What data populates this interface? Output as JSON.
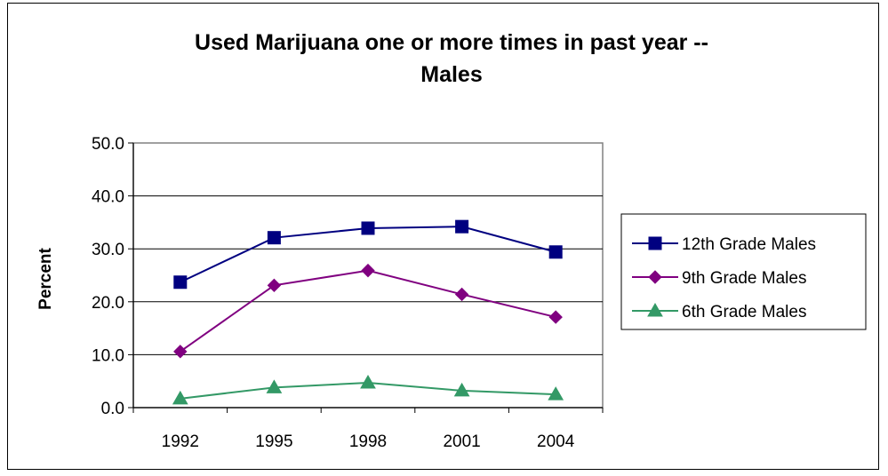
{
  "chart_data": {
    "type": "line",
    "title_lines": [
      "Used Marijuana one or more times in past year --",
      "Males"
    ],
    "xlabel": "",
    "ylabel": "Percent",
    "categories": [
      "1992",
      "1995",
      "1998",
      "2001",
      "2004"
    ],
    "ylim": [
      0,
      50
    ],
    "yticks": [
      "0.0",
      "10.0",
      "20.0",
      "30.0",
      "40.0",
      "50.0"
    ],
    "grid": true,
    "legend_position": "right",
    "series": [
      {
        "name": "12th Grade Males",
        "values": [
          23.7,
          32.1,
          33.9,
          34.2,
          29.4
        ],
        "color": "#000080",
        "marker": "square"
      },
      {
        "name": "9th Grade Males",
        "values": [
          10.6,
          23.1,
          25.9,
          21.4,
          17.1
        ],
        "color": "#800080",
        "marker": "diamond"
      },
      {
        "name": "6th Grade Males",
        "values": [
          1.7,
          3.8,
          4.7,
          3.2,
          2.5
        ],
        "color": "#339966",
        "marker": "triangle"
      }
    ]
  }
}
